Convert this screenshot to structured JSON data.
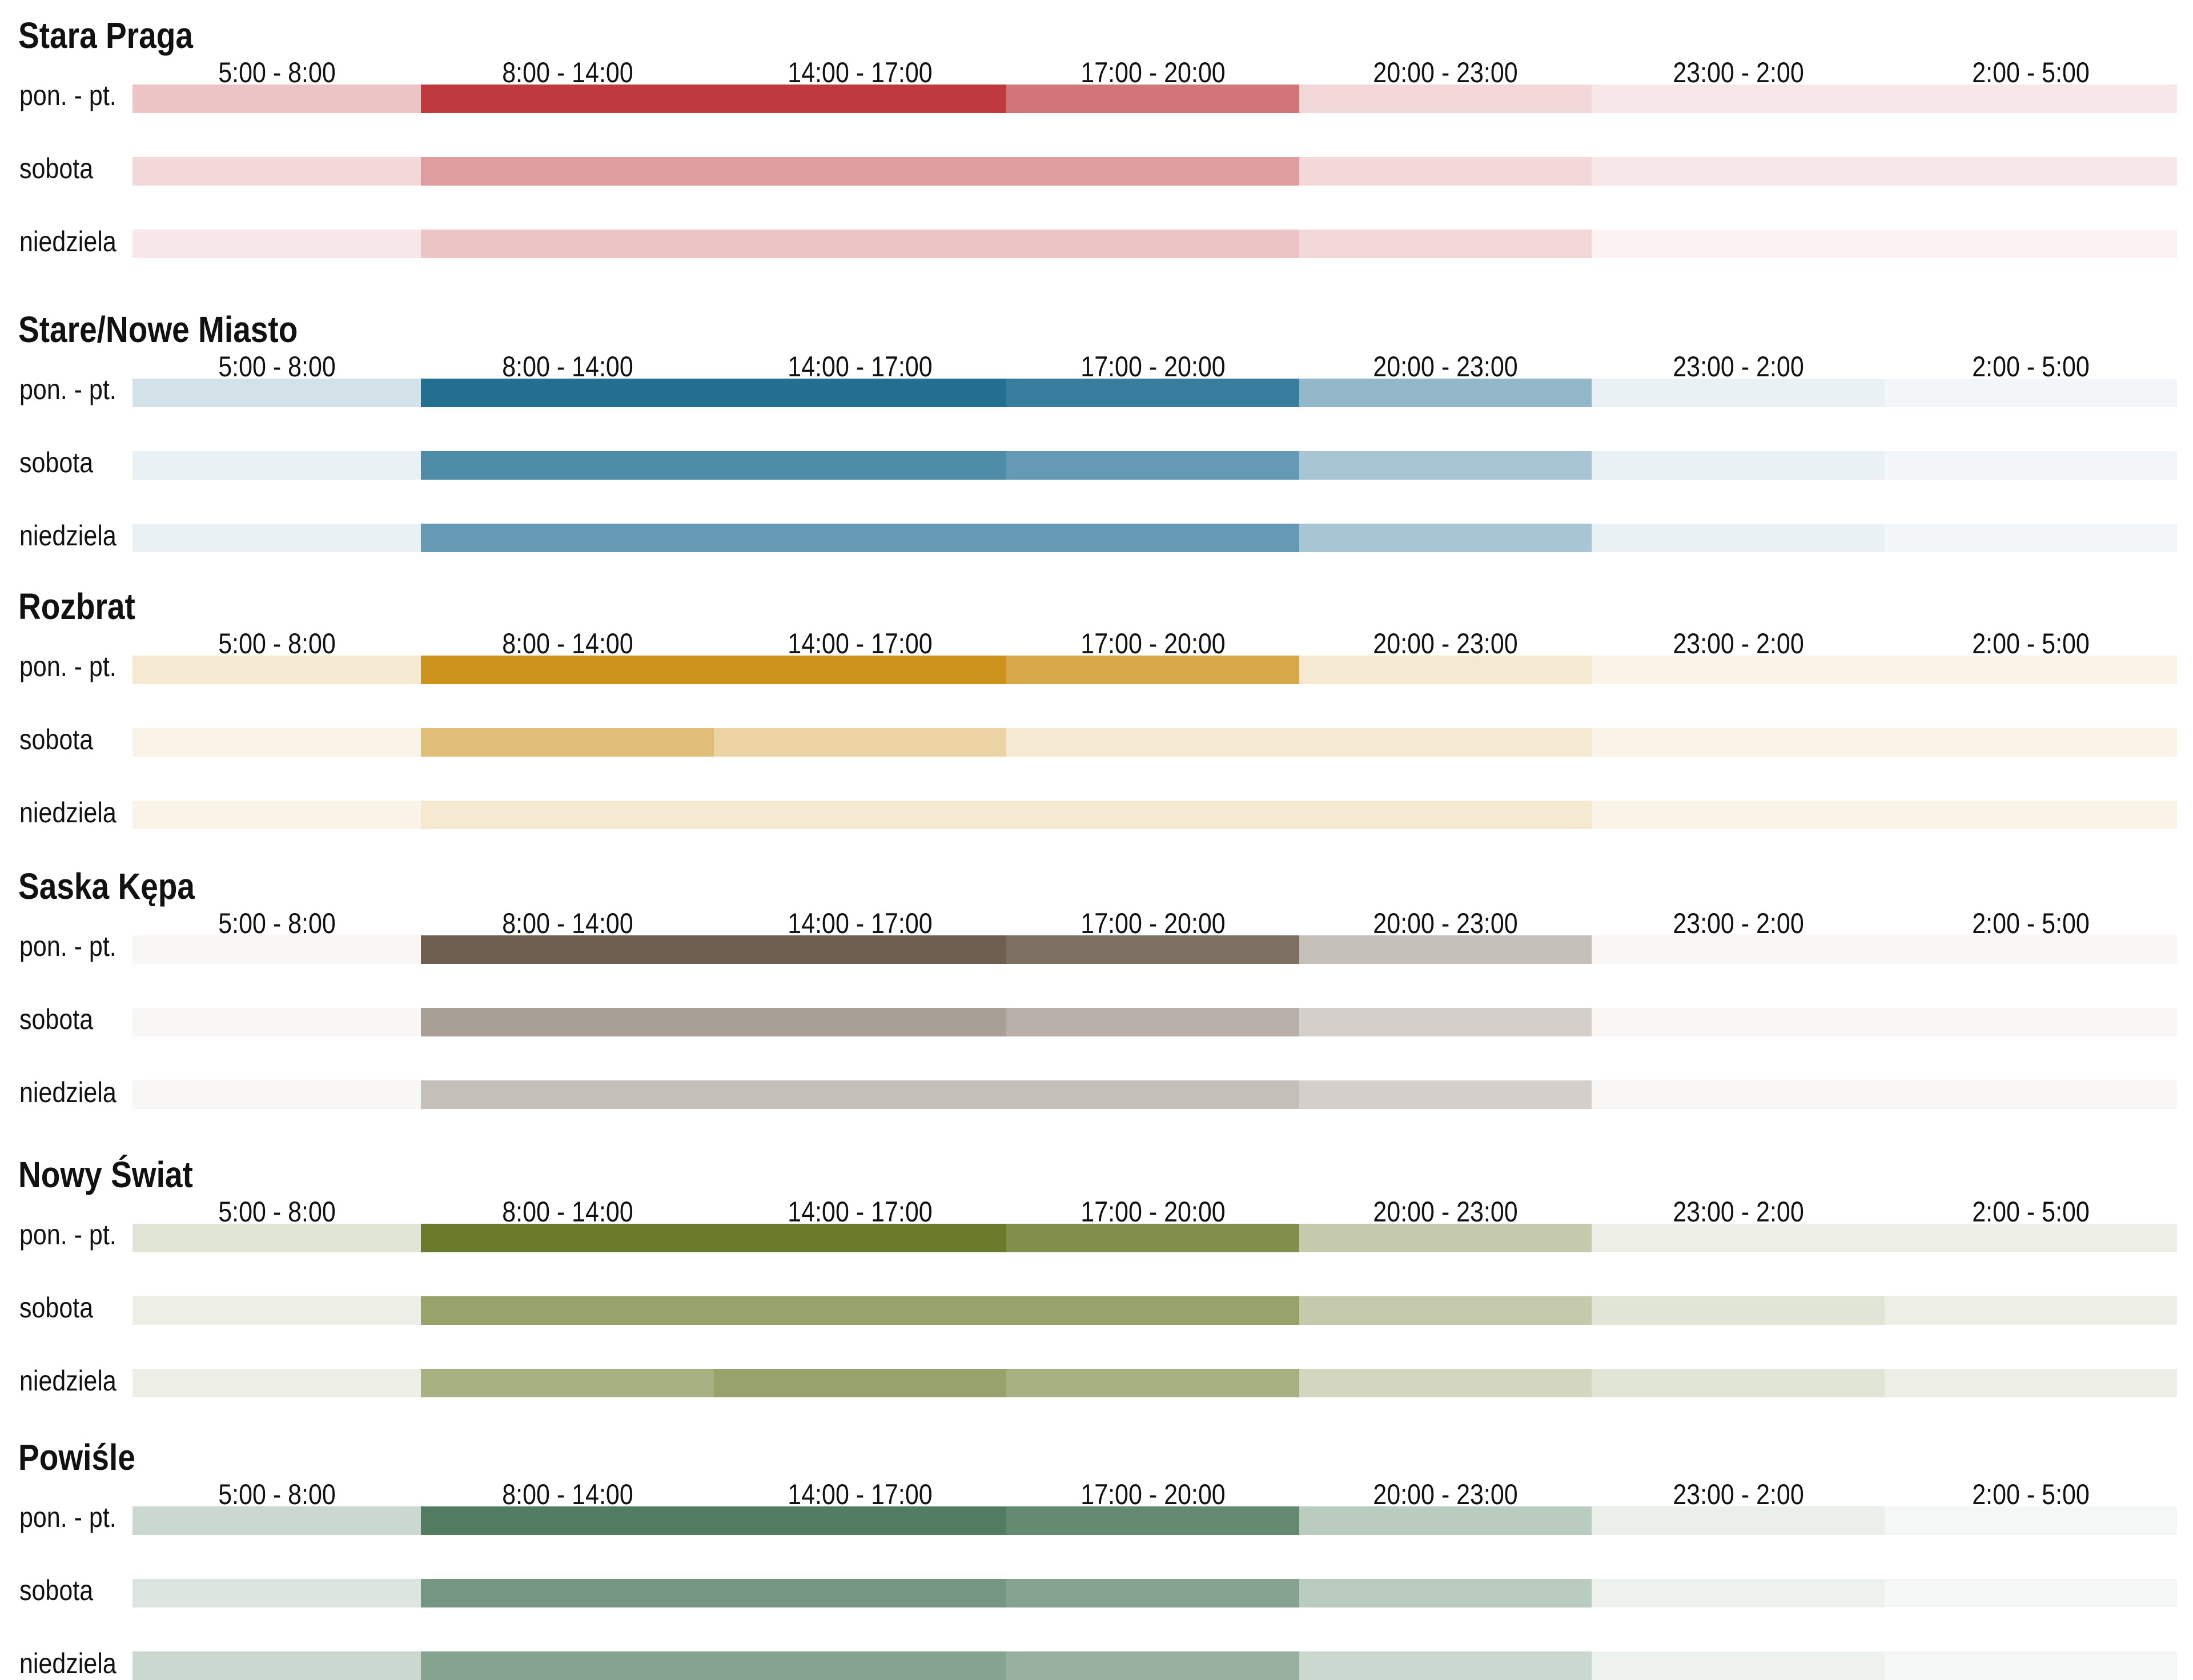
{
  "chart_data": {
    "type": "heatmap",
    "title": "",
    "time_slots": [
      "5:00 - 8:00",
      "8:00 - 14:00",
      "14:00 - 17:00",
      "17:00 - 20:00",
      "20:00 - 23:00",
      "23:00 - 2:00",
      "2:00 - 5:00"
    ],
    "day_types": [
      "pon. - pt.",
      "sobota",
      "niedziela"
    ],
    "scale": "color intensity = relative activity, 0 (lowest) to 1 (highest) per area",
    "areas": [
      {
        "name": "Stara Praga",
        "color": "#bf3a3f",
        "values": [
          [
            0.3,
            1.0,
            1.0,
            0.7,
            0.2,
            0.12,
            0.12
          ],
          [
            0.2,
            0.5,
            0.5,
            0.5,
            0.2,
            0.12,
            0.12
          ],
          [
            0.12,
            0.3,
            0.3,
            0.3,
            0.2,
            0.06,
            0.06
          ]
        ]
      },
      {
        "name": "Stare/Nowe Miasto",
        "color": "#226f92",
        "values": [
          [
            0.2,
            1.0,
            1.0,
            0.9,
            0.5,
            0.1,
            0.06
          ],
          [
            0.1,
            0.8,
            0.8,
            0.7,
            0.4,
            0.1,
            0.06
          ],
          [
            0.1,
            0.7,
            0.7,
            0.7,
            0.4,
            0.1,
            0.06
          ]
        ]
      },
      {
        "name": "Rozbrat",
        "color": "#cd921c",
        "values": [
          [
            0.2,
            1.0,
            1.0,
            0.8,
            0.2,
            0.1,
            0.1
          ],
          [
            0.1,
            0.6,
            0.4,
            0.2,
            0.2,
            0.1,
            0.1
          ],
          [
            0.1,
            0.2,
            0.2,
            0.2,
            0.2,
            0.1,
            0.1
          ]
        ]
      },
      {
        "name": "Saska Kępa",
        "color": "#6e5f50",
        "values": [
          [
            0.05,
            1.0,
            1.0,
            0.9,
            0.4,
            0.05,
            0.05
          ],
          [
            0.05,
            0.6,
            0.6,
            0.5,
            0.3,
            0.05,
            0.05
          ],
          [
            0.05,
            0.4,
            0.4,
            0.4,
            0.3,
            0.05,
            0.05
          ]
        ]
      },
      {
        "name": "Nowy Świat",
        "color": "#6b7b2c",
        "values": [
          [
            0.2,
            1.0,
            1.0,
            0.85,
            0.4,
            0.12,
            0.12
          ],
          [
            0.12,
            0.7,
            0.7,
            0.7,
            0.4,
            0.2,
            0.12
          ],
          [
            0.12,
            0.6,
            0.7,
            0.6,
            0.3,
            0.2,
            0.12
          ]
        ]
      },
      {
        "name": "Powiśle",
        "color": "#527c61",
        "values": [
          [
            0.3,
            1.0,
            1.0,
            0.9,
            0.4,
            0.12,
            0.06
          ],
          [
            0.2,
            0.8,
            0.8,
            0.7,
            0.4,
            0.1,
            0.06
          ],
          [
            0.3,
            0.7,
            0.7,
            0.6,
            0.3,
            0.1,
            0.06
          ]
        ]
      }
    ]
  }
}
